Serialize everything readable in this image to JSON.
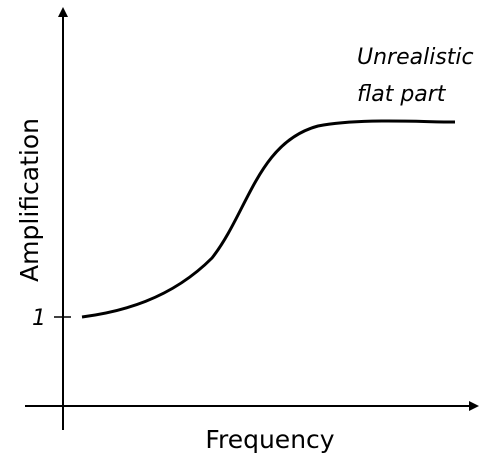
{
  "axes": {
    "x_label": "Frequency",
    "y_label": "Amplification"
  },
  "tick_label": "1",
  "annotation": [
    "Unrealistic",
    "flat part"
  ]
}
